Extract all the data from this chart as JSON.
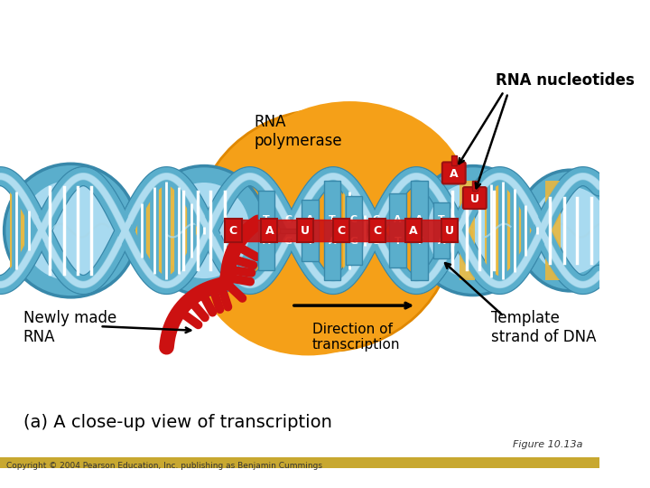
{
  "labels": {
    "rna_nucleotides": "RNA nucleotides",
    "rna_polymerase": "RNA\npolymerase",
    "newly_made_rna": "Newly made\nRNA",
    "direction": "Direction of\ntranscription",
    "template_strand": "Template\nstrand of DNA",
    "subtitle": "(a) A close-up view of transcription",
    "figure_ref": "Figure 10.13a",
    "copyright": "Copyright © 2004 Pearson Education, Inc. publishing as Benjamin Cummings"
  },
  "colors": {
    "dna_blue": "#5aaecc",
    "dna_dark_blue": "#3888aa",
    "dna_light": "#a8d8ea",
    "rna_poly_orange": "#f5a018",
    "rna_poly_edge": "#e08800",
    "rna_red": "#cc1111",
    "rna_red_dark": "#991111",
    "white": "#ffffff",
    "black": "#000000",
    "yellow_stripe": "#e8b840",
    "bottom_bar": "#c8a830",
    "dna_inner": "#7ec8e0"
  }
}
